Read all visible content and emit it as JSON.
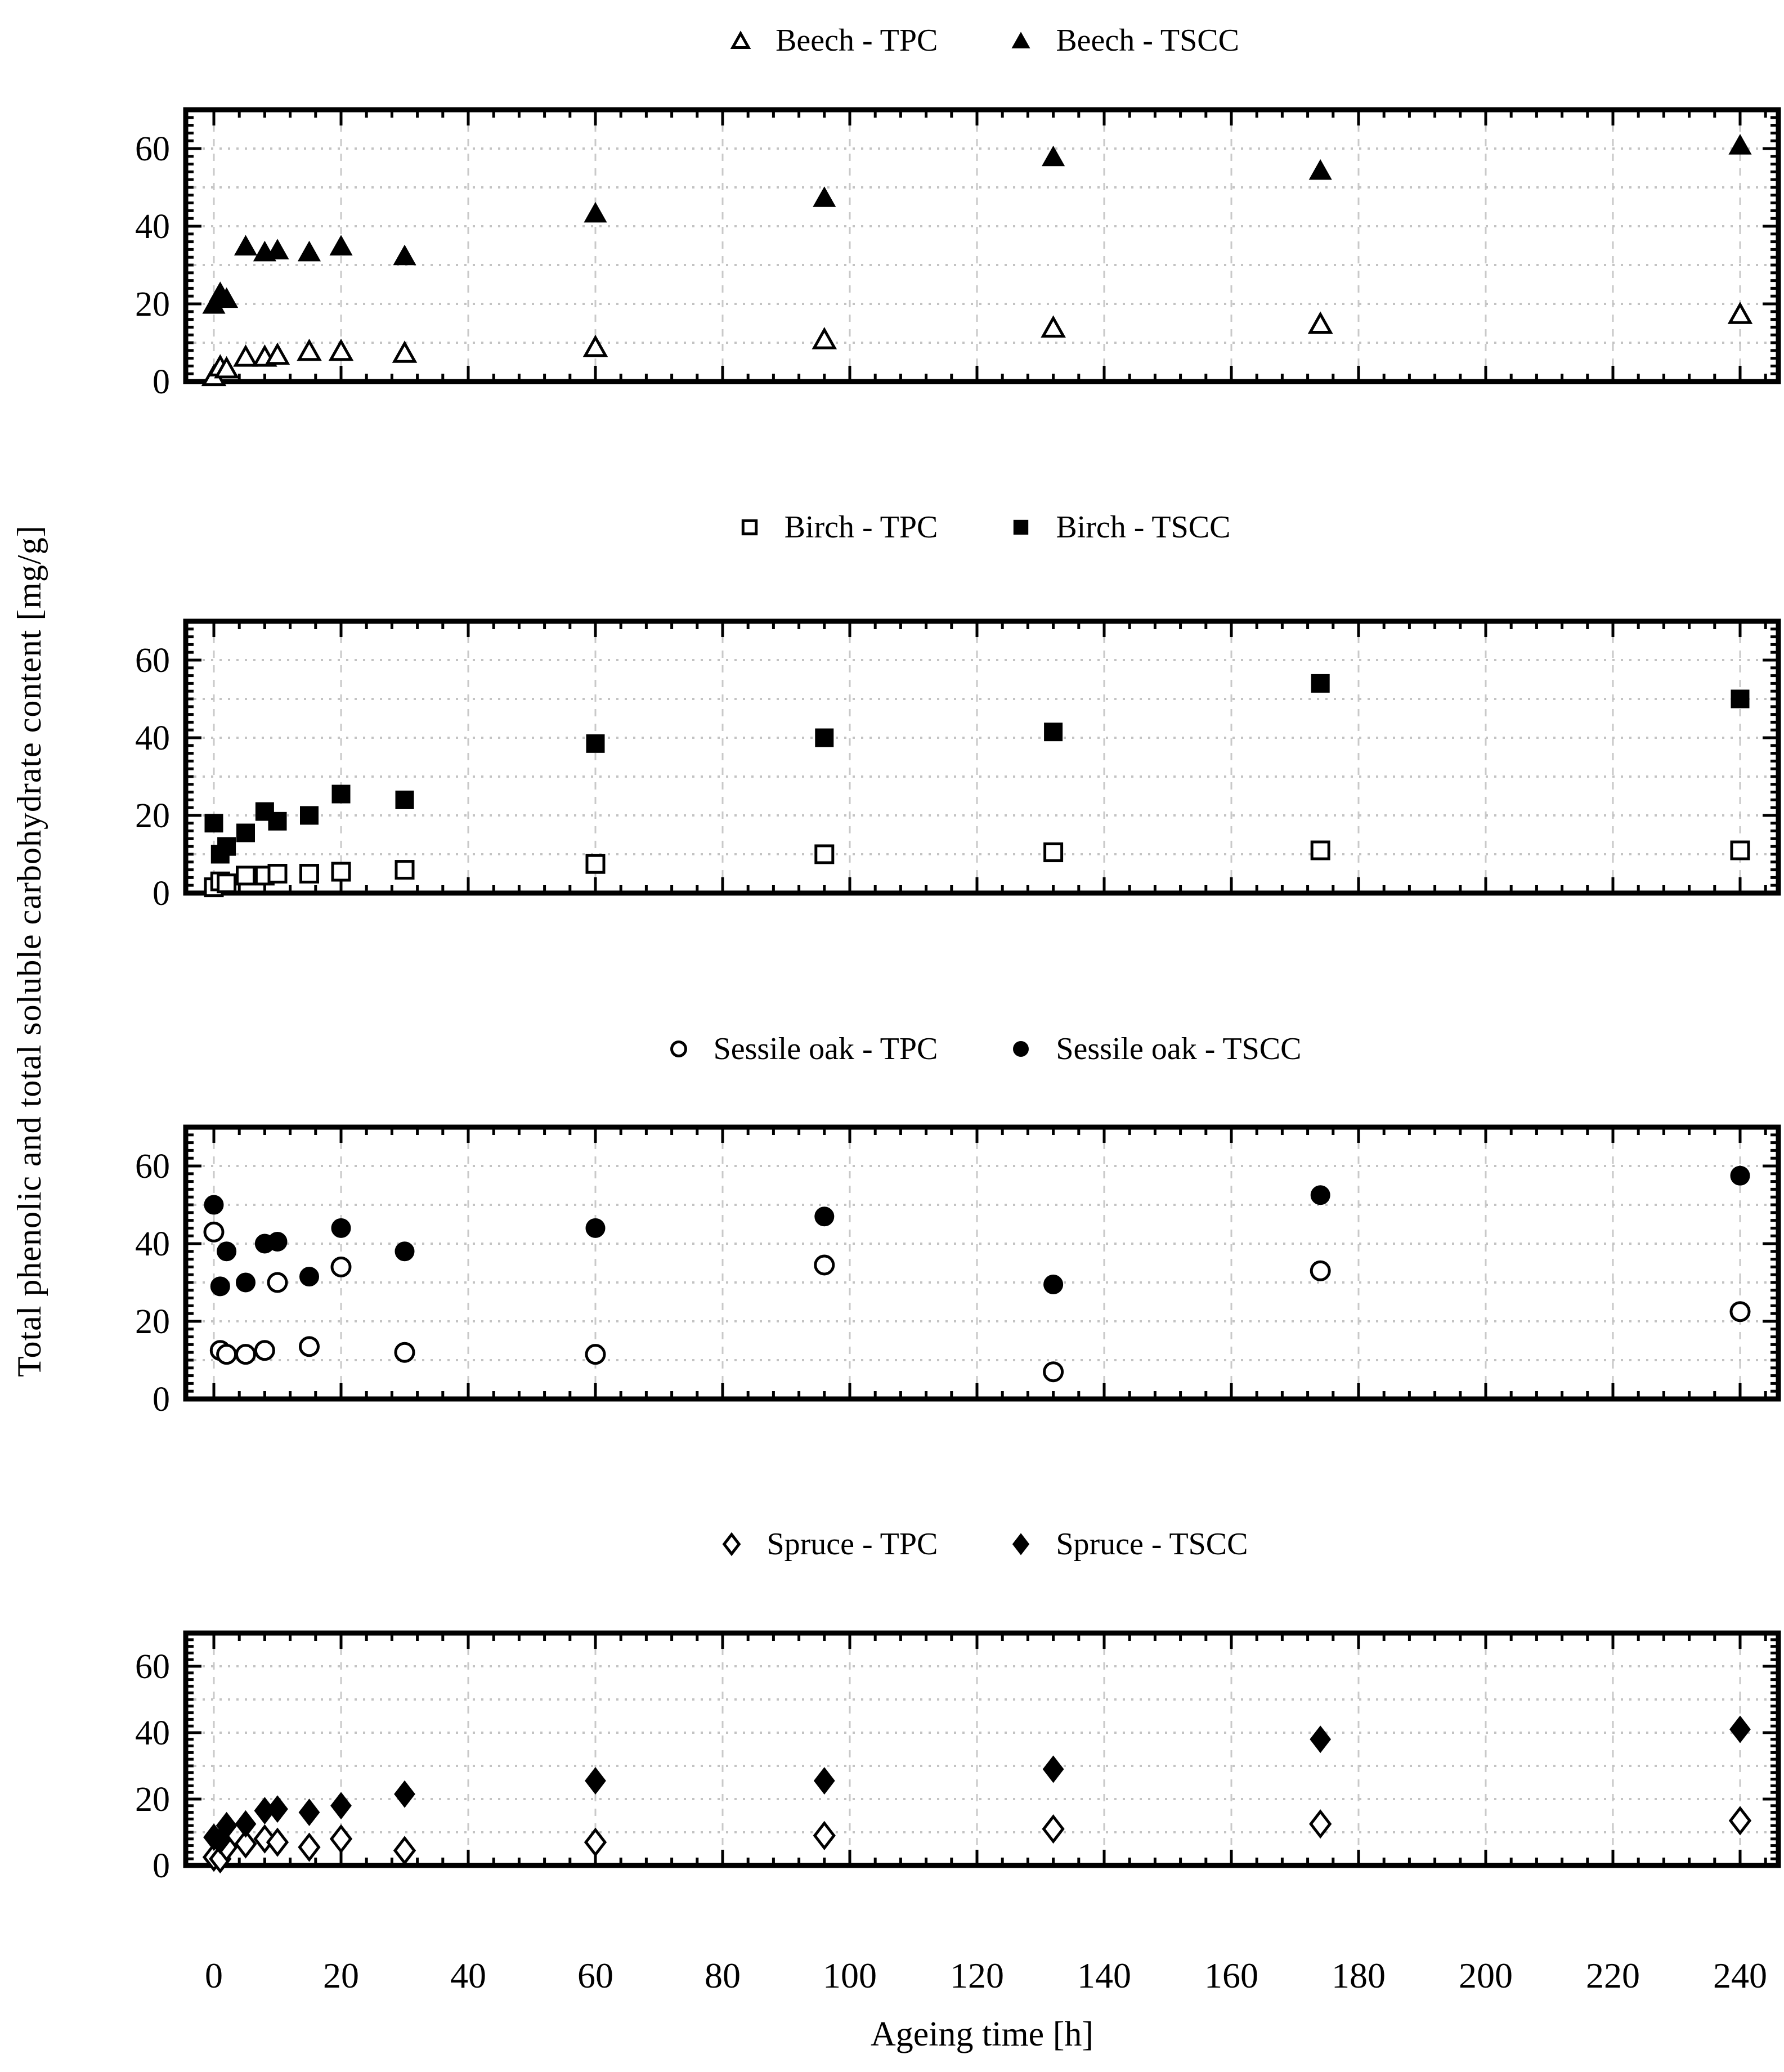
{
  "figure": {
    "y_axis_label": "Total phenolic and total soluble carbohydrate content [mg/g]",
    "x_axis_label": "Ageing time [h]"
  },
  "axes": {
    "x_tick_labels": [
      "0",
      "20",
      "40",
      "60",
      "80",
      "100",
      "120",
      "140",
      "160",
      "180",
      "200",
      "220",
      "240"
    ],
    "x_tick_values": [
      0,
      20,
      40,
      60,
      80,
      100,
      120,
      140,
      160,
      180,
      200,
      220,
      240
    ],
    "y_tick_labels": [
      "0",
      "20",
      "40",
      "60"
    ],
    "y_tick_values": [
      0,
      20,
      40,
      60
    ],
    "x_range": [
      -4.4,
      246
    ],
    "y_range": [
      0,
      70
    ],
    "x_gridline_step": 20,
    "y_gridline_step": 10,
    "grid": true
  },
  "colors": {
    "marker": "#000000",
    "axis": "#000000",
    "grid_vertical": "#c9c9c9",
    "grid_horizontal": "#c3c3c3",
    "background": "#ffffff"
  },
  "chart_data": [
    {
      "type": "scatter",
      "species": "Beech",
      "marker_shape": "triangle",
      "legend": [
        {
          "label": "Beech - TPC",
          "marker": "triangle-open"
        },
        {
          "label": "Beech - TSCC",
          "marker": "triangle-filled"
        }
      ],
      "x": [
        0,
        1,
        2,
        5,
        8,
        10,
        15,
        20,
        30,
        60,
        96,
        132,
        174,
        240
      ],
      "series": [
        {
          "name": "Beech - TPC",
          "fill": "open",
          "values": [
            1.5,
            4,
            3.5,
            6.5,
            6.5,
            7,
            8,
            8,
            7.5,
            9,
            11,
            14,
            15,
            17.5
          ]
        },
        {
          "name": "Beech - TSCC",
          "fill": "filled",
          "values": [
            20,
            23,
            21.5,
            35,
            33.5,
            34,
            33.5,
            35,
            32.5,
            43.5,
            47.5,
            58,
            54.5,
            61
          ]
        }
      ]
    },
    {
      "type": "scatter",
      "species": "Birch",
      "marker_shape": "square",
      "legend": [
        {
          "label": "Birch - TPC",
          "marker": "square-open"
        },
        {
          "label": "Birch - TSCC",
          "marker": "square-filled"
        }
      ],
      "x": [
        0,
        1,
        2,
        5,
        8,
        10,
        15,
        20,
        30,
        60,
        96,
        132,
        174,
        240
      ],
      "series": [
        {
          "name": "Birch - TPC",
          "fill": "open",
          "values": [
            1.5,
            3,
            2.5,
            4.5,
            4.5,
            5,
            5,
            5.5,
            6,
            7.5,
            10,
            10.5,
            11,
            11
          ]
        },
        {
          "name": "Birch - TSCC",
          "fill": "filled",
          "values": [
            18,
            10,
            12,
            15.5,
            21,
            18.5,
            20,
            25.5,
            24,
            38.5,
            40,
            41.5,
            54,
            50
          ]
        }
      ]
    },
    {
      "type": "scatter",
      "species": "Sessile oak",
      "marker_shape": "circle",
      "legend": [
        {
          "label": "Sessile oak - TPC",
          "marker": "circle-open"
        },
        {
          "label": "Sessile oak - TSCC",
          "marker": "circle-filled"
        }
      ],
      "x": [
        0,
        1,
        2,
        5,
        8,
        10,
        15,
        20,
        30,
        60,
        96,
        132,
        174,
        240
      ],
      "series": [
        {
          "name": "Sessile oak - TPC",
          "fill": "open",
          "values": [
            43,
            12.5,
            11.5,
            11.5,
            12.5,
            30,
            13.5,
            34,
            12,
            11.5,
            34.5,
            7,
            33,
            22.5
          ]
        },
        {
          "name": "Sessile oak - TSCC",
          "fill": "filled",
          "values": [
            50,
            29,
            38,
            30,
            40,
            40.5,
            31.5,
            44,
            38,
            44,
            47,
            29.5,
            52.5,
            57.5
          ]
        }
      ]
    },
    {
      "type": "scatter",
      "species": "Spruce",
      "marker_shape": "diamond",
      "legend": [
        {
          "label": "Spruce - TPC",
          "marker": "diamond-open"
        },
        {
          "label": "Spruce - TSCC",
          "marker": "diamond-filled"
        }
      ],
      "x": [
        0,
        1,
        2,
        5,
        8,
        10,
        15,
        20,
        30,
        60,
        96,
        132,
        174,
        240
      ],
      "series": [
        {
          "name": "Spruce - TPC",
          "fill": "open",
          "values": [
            2.5,
            2,
            5.5,
            6.5,
            8,
            7,
            5.5,
            8,
            4.5,
            7,
            9,
            11,
            12.5,
            13.5
          ]
        },
        {
          "name": "Spruce - TSCC",
          "fill": "filled",
          "values": [
            8.5,
            7.5,
            12,
            12.5,
            16.5,
            17,
            16,
            18,
            21.5,
            25.5,
            25.5,
            29,
            38,
            41
          ]
        }
      ]
    }
  ]
}
